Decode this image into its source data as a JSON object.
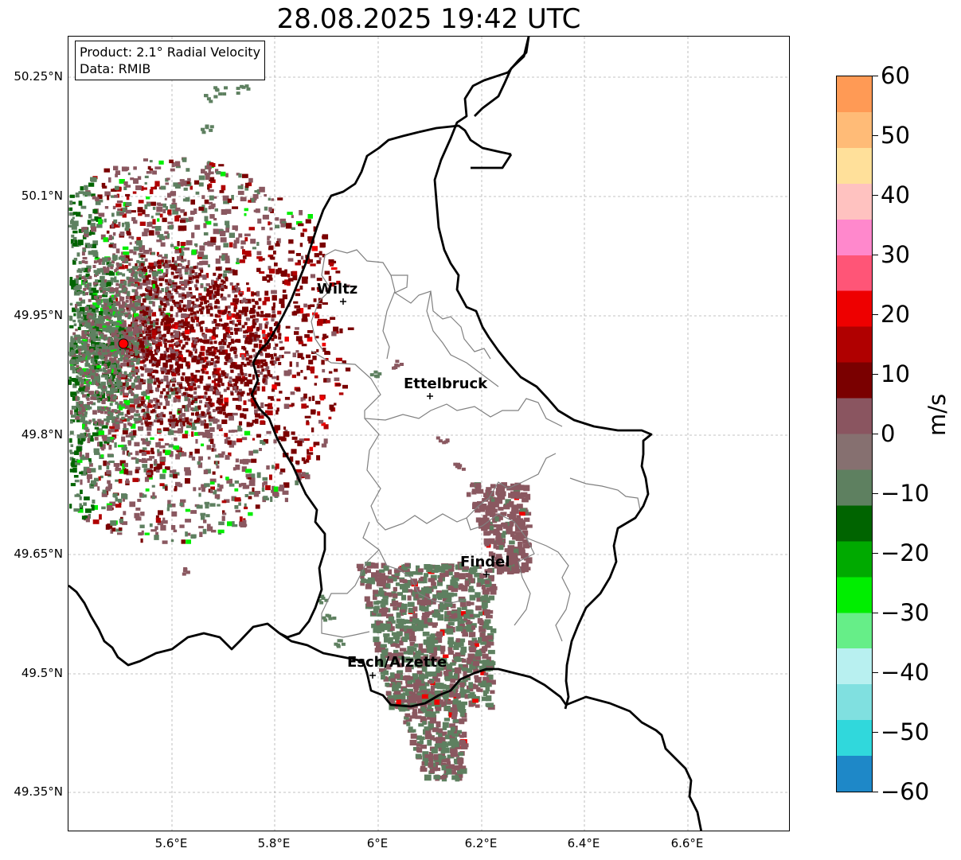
{
  "title": "28.08.2025 19:42 UTC",
  "info": {
    "product": "Product: 2.1° Radial Velocity",
    "data": "Data: RMIB"
  },
  "latitude_ticks": [
    "50.25°N",
    "50.1°N",
    "49.95°N",
    "49.8°N",
    "49.65°N",
    "49.5°N",
    "49.35°N"
  ],
  "longitude_ticks": [
    "5.6°E",
    "5.8°E",
    "6°E",
    "6.2°E",
    "6.4°E",
    "6.6°E"
  ],
  "colorbar": {
    "label": "m/s",
    "min": -60,
    "max": 60,
    "ticks": [
      "60",
      "50",
      "40",
      "30",
      "20",
      "10",
      "0",
      "−10",
      "−20",
      "−30",
      "−40",
      "−50",
      "−60"
    ],
    "colors_top_to_bottom": [
      "#ff9a55",
      "#ffbb77",
      "#ffe09a",
      "#ffc2c0",
      "#ff88cc",
      "#ff5577",
      "#ee0000",
      "#b00000",
      "#7a0000",
      "#8a5560",
      "#867070",
      "#5e8060",
      "#006400",
      "#00aa00",
      "#00ee00",
      "#66ee88",
      "#b8f0f0",
      "#80e0e0",
      "#30d8dc",
      "#1e88c8"
    ]
  },
  "cities": [
    {
      "name": "Wiltz"
    },
    {
      "name": "Ettelbruck"
    },
    {
      "name": "Findel"
    },
    {
      "name": "Esch/Alzette"
    }
  ],
  "radar_site_color": "#ff0000",
  "velocity_colors": {
    "outbound_dark": "#7a0000",
    "outbound_mid": "#b00000",
    "outbound_bright": "#ee0000",
    "near_zero_red": "#8a5860",
    "near_zero_green": "#5e8060",
    "inbound_dark": "#006400",
    "inbound_bright": "#00ee00"
  }
}
